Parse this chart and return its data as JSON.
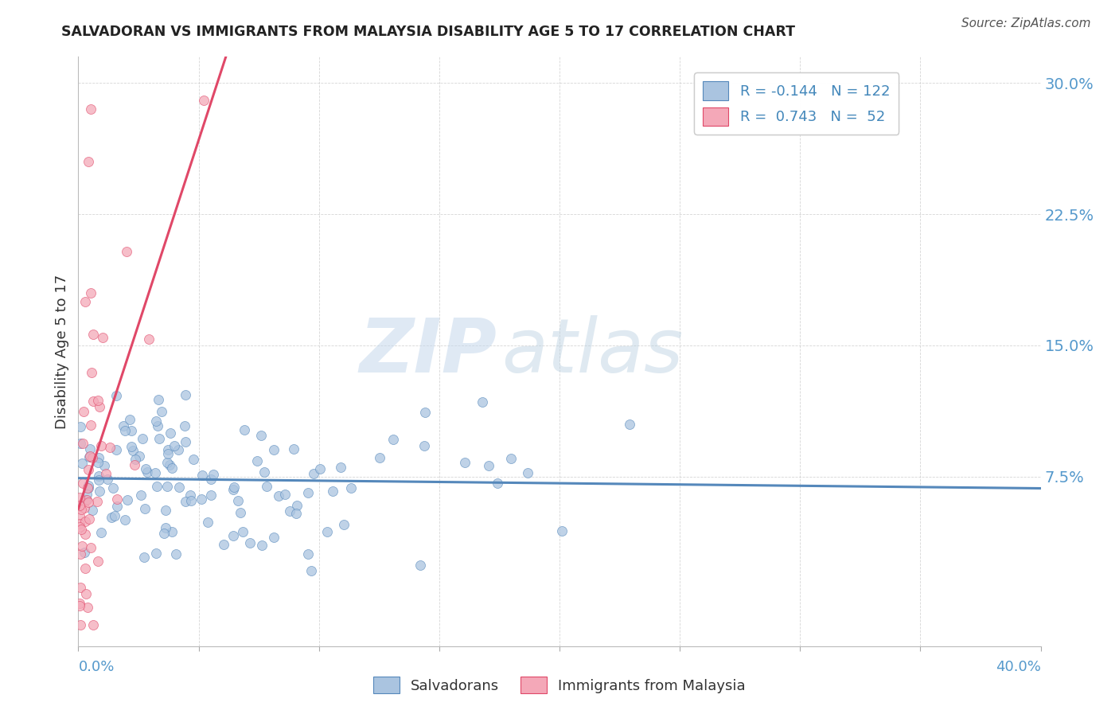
{
  "title": "SALVADORAN VS IMMIGRANTS FROM MALAYSIA DISABILITY AGE 5 TO 17 CORRELATION CHART",
  "source": "Source: ZipAtlas.com",
  "ylabel": "Disability Age 5 to 17",
  "blue_color": "#aac4e0",
  "pink_color": "#f4a8b8",
  "blue_line_color": "#5588bb",
  "pink_line_color": "#e04868",
  "legend_blue_label": "R = -0.144   N = 122",
  "legend_pink_label": "R =  0.743   N =  52",
  "watermark_zip": "ZIP",
  "watermark_atlas": "atlas",
  "xlim": [
    0.0,
    0.4
  ],
  "ylim": [
    -0.022,
    0.315
  ],
  "ytick_vals": [
    0.075,
    0.15,
    0.225,
    0.3
  ],
  "ytick_labels": [
    "7.5%",
    "15.0%",
    "22.5%",
    "30.0%"
  ],
  "xtick_vals": [
    0.0,
    0.05,
    0.1,
    0.15,
    0.2,
    0.25,
    0.3,
    0.35,
    0.4
  ]
}
